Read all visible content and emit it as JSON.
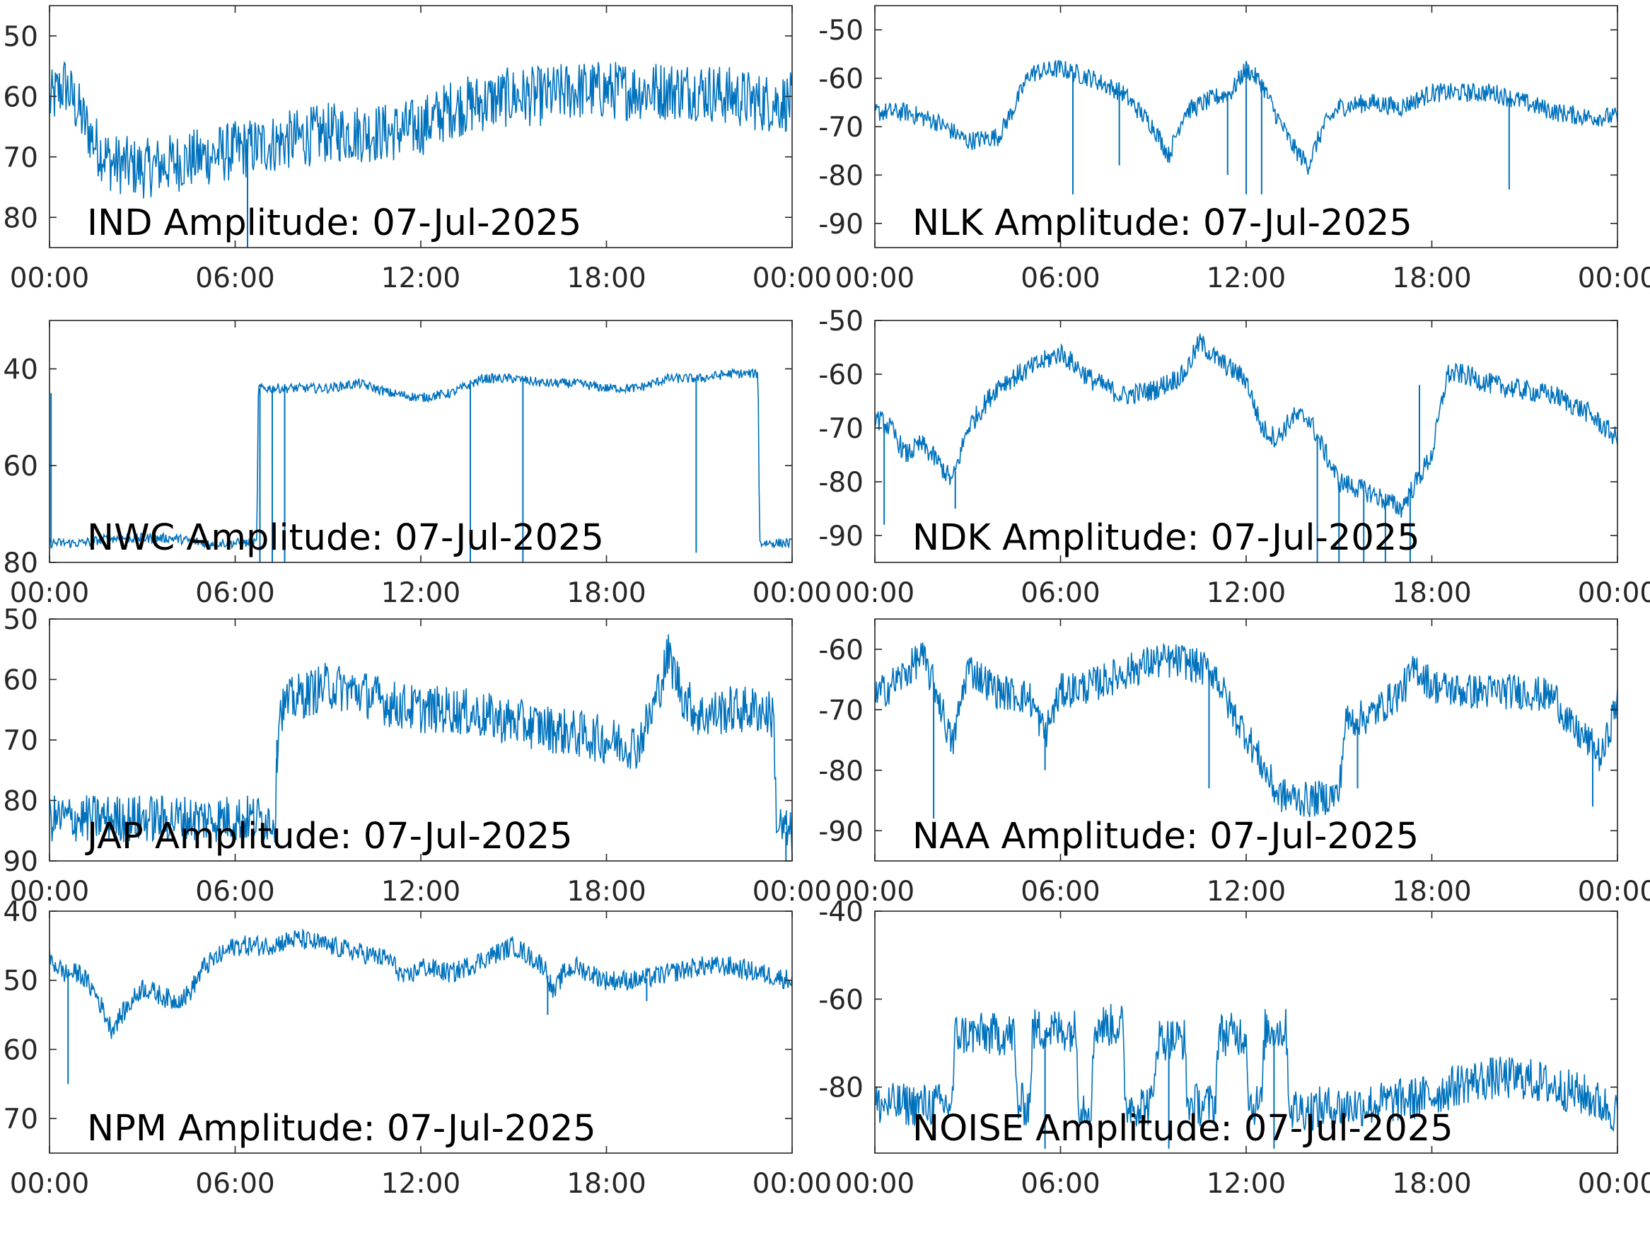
{
  "figure": {
    "line_color": "#0072BD",
    "axes_color": "#262626",
    "background": "#ffffff"
  },
  "chart_data": [
    {
      "type": "line",
      "station": "IND",
      "label": "IND Amplitude: 07-Jul-2025",
      "x_ticks": [
        "00:00",
        "06:00",
        "12:00",
        "18:00",
        "00:00"
      ],
      "ylim": [
        -85,
        -45
      ],
      "y_ticks": [
        -50,
        -60,
        -70,
        -80
      ],
      "y_tick_labels": [
        "50",
        "60",
        "70",
        "80"
      ],
      "noise": 5,
      "x": [
        0,
        0.5,
        1,
        1.5,
        2,
        3,
        4,
        5,
        6,
        7,
        8,
        9,
        10,
        11,
        12,
        13,
        14,
        15,
        16,
        17,
        18,
        19,
        20,
        21,
        22,
        23,
        24
      ],
      "y": [
        -61,
        -58,
        -63,
        -68,
        -71,
        -72,
        -71,
        -70,
        -69,
        -68,
        -67,
        -66,
        -66,
        -66,
        -65,
        -62,
        -61,
        -60,
        -60,
        -59,
        -59,
        -59,
        -59,
        -59,
        -60,
        -61,
        -61
      ],
      "spikes": [
        {
          "x": 6.4,
          "y": -86
        }
      ]
    },
    {
      "type": "line",
      "station": "NLK",
      "label": "NLK Amplitude: 07-Jul-2025",
      "x_ticks": [
        "00:00",
        "06:00",
        "12:00",
        "18:00",
        "00:00"
      ],
      "ylim": [
        -95,
        -45
      ],
      "y_ticks": [
        -50,
        -60,
        -70,
        -80,
        -90
      ],
      "y_tick_labels": [
        "-50",
        "-60",
        "-70",
        "-80",
        "-90"
      ],
      "noise": 2,
      "x": [
        0,
        1,
        2,
        3,
        4,
        4.5,
        5,
        6,
        7,
        8,
        9,
        9.5,
        10,
        11,
        11.5,
        12,
        12.5,
        13,
        13.5,
        14,
        14.5,
        15,
        16,
        17,
        18,
        19,
        20,
        21,
        22,
        23,
        24
      ],
      "y": [
        -67,
        -67,
        -69,
        -73,
        -72,
        -66,
        -59,
        -58,
        -60,
        -63,
        -70,
        -76,
        -67,
        -64,
        -63,
        -58,
        -61,
        -68,
        -74,
        -78,
        -70,
        -66,
        -65,
        -66,
        -63,
        -63,
        -63,
        -65,
        -67,
        -68,
        -68
      ],
      "spikes": [
        {
          "x": 6.4,
          "y": -84
        },
        {
          "x": 7.9,
          "y": -78
        },
        {
          "x": 11.4,
          "y": -80
        },
        {
          "x": 12.0,
          "y": -84
        },
        {
          "x": 12.5,
          "y": -84
        },
        {
          "x": 20.5,
          "y": -83
        }
      ]
    },
    {
      "type": "line",
      "station": "NWC",
      "label": "NWC Amplitude: 07-Jul-2025",
      "x_ticks": [
        "00:00",
        "06:00",
        "12:00",
        "18:00",
        "00:00"
      ],
      "ylim": [
        -80,
        -30
      ],
      "y_ticks": [
        -40,
        -60,
        -80
      ],
      "y_tick_labels": [
        "40",
        "60",
        "80"
      ],
      "noise": 1,
      "x": [
        0,
        0.1,
        1,
        2,
        3,
        4,
        5,
        6,
        6.7,
        6.75,
        7,
        8,
        9,
        10,
        11,
        12,
        13,
        14,
        15,
        16,
        17,
        18,
        19,
        20,
        21,
        22,
        22.9,
        22.95,
        24
      ],
      "y": [
        -76,
        -76,
        -76,
        -75,
        -75,
        -75,
        -76,
        -76,
        -76,
        -44,
        -44,
        -44,
        -44,
        -43,
        -45,
        -46,
        -45,
        -42,
        -42,
        -43,
        -43,
        -44,
        -44,
        -42,
        -42,
        -41,
        -41,
        -76,
        -76
      ],
      "spikes": [
        {
          "x": 0.05,
          "y": -45
        },
        {
          "x": 6.8,
          "y": -80
        },
        {
          "x": 7.2,
          "y": -80
        },
        {
          "x": 7.6,
          "y": -80
        },
        {
          "x": 13.6,
          "y": -80
        },
        {
          "x": 15.3,
          "y": -80
        },
        {
          "x": 20.9,
          "y": -78
        }
      ]
    },
    {
      "type": "line",
      "station": "NDK",
      "label": "NDK Amplitude: 07-Jul-2025",
      "x_ticks": [
        "00:00",
        "06:00",
        "12:00",
        "18:00",
        "00:00"
      ],
      "ylim": [
        -95,
        -50
      ],
      "y_ticks": [
        -50,
        -60,
        -70,
        -80,
        -90
      ],
      "y_tick_labels": [
        "-50",
        "-60",
        "-70",
        "-80",
        "-90"
      ],
      "noise": 2,
      "x": [
        0,
        0.5,
        1,
        1.5,
        2,
        2.5,
        3,
        4,
        5,
        6,
        7,
        8,
        9,
        10,
        10.5,
        11,
        12,
        12.5,
        13,
        13.5,
        14,
        15,
        16,
        17,
        18,
        18.5,
        19,
        20,
        21,
        22,
        23,
        24
      ],
      "y": [
        -68,
        -70,
        -75,
        -73,
        -76,
        -80,
        -70,
        -62,
        -59,
        -56,
        -61,
        -64,
        -63,
        -60,
        -54,
        -57,
        -61,
        -70,
        -72,
        -68,
        -68,
        -80,
        -82,
        -85,
        -75,
        -60,
        -60,
        -62,
        -63,
        -64,
        -67,
        -72
      ],
      "spikes": [
        {
          "x": 0.3,
          "y": -88
        },
        {
          "x": 2.6,
          "y": -85
        },
        {
          "x": 14.3,
          "y": -95
        },
        {
          "x": 15.0,
          "y": -95
        },
        {
          "x": 15.8,
          "y": -95
        },
        {
          "x": 16.5,
          "y": -95
        },
        {
          "x": 17.3,
          "y": -95
        },
        {
          "x": 17.6,
          "y": -62
        }
      ]
    },
    {
      "type": "line",
      "station": "JAP",
      "label": "JAP Amplitude: 07-Jul-2025",
      "x_ticks": [
        "00:00",
        "06:00",
        "12:00",
        "18:00",
        "00:00"
      ],
      "ylim": [
        -90,
        -50
      ],
      "y_ticks": [
        -50,
        -60,
        -70,
        -80,
        -90
      ],
      "y_tick_labels": [
        "50",
        "60",
        "70",
        "80",
        "90"
      ],
      "noise": 4,
      "x": [
        0,
        1,
        2,
        3,
        4,
        5,
        6,
        7.3,
        7.4,
        8,
        9,
        10,
        11,
        12,
        13,
        14,
        15,
        16,
        17,
        18,
        19,
        19.5,
        20,
        20.5,
        21,
        22,
        23,
        23.4,
        23.5,
        24
      ],
      "y": [
        -83,
        -83,
        -83,
        -83,
        -83,
        -83,
        -83,
        -83,
        -65,
        -63,
        -61,
        -62,
        -64,
        -65,
        -65,
        -66,
        -67,
        -68,
        -69,
        -70,
        -71,
        -65,
        -56,
        -63,
        -66,
        -65,
        -65,
        -66,
        -84,
        -86
      ],
      "spikes": [
        {
          "x": 7.35,
          "y": -70
        },
        {
          "x": 23.8,
          "y": -90
        }
      ]
    },
    {
      "type": "line",
      "station": "NAA",
      "label": "NAA Amplitude: 07-Jul-2025",
      "x_ticks": [
        "00:00",
        "06:00",
        "12:00",
        "18:00",
        "00:00"
      ],
      "ylim": [
        -95,
        -55
      ],
      "y_ticks": [
        -60,
        -70,
        -80,
        -90
      ],
      "y_tick_labels": [
        "-60",
        "-70",
        "-80",
        "-90"
      ],
      "noise": 3,
      "x": [
        0,
        1,
        1.5,
        2,
        2.5,
        3,
        4,
        5,
        5.5,
        6,
        7,
        8,
        9,
        10,
        11,
        11.5,
        12,
        12.5,
        13,
        14,
        15,
        15.2,
        16,
        17,
        17.5,
        18,
        19,
        20,
        21,
        22,
        22.5,
        23,
        23.5,
        24
      ],
      "y": [
        -68,
        -64,
        -61,
        -67,
        -76,
        -63,
        -67,
        -68,
        -74,
        -67,
        -66,
        -64,
        -62,
        -62,
        -64,
        -70,
        -74,
        -79,
        -84,
        -85,
        -84,
        -72,
        -71,
        -67,
        -63,
        -66,
        -67,
        -67,
        -67,
        -68,
        -73,
        -75,
        -78,
        -68
      ],
      "spikes": [
        {
          "x": 1.9,
          "y": -88
        },
        {
          "x": 5.5,
          "y": -80
        },
        {
          "x": 10.8,
          "y": -83
        },
        {
          "x": 15.6,
          "y": -83
        },
        {
          "x": 23.2,
          "y": -86
        }
      ]
    },
    {
      "type": "line",
      "station": "NPM",
      "label": "NPM Amplitude: 07-Jul-2025",
      "x_ticks": [
        "00:00",
        "06:00",
        "12:00",
        "18:00",
        "00:00"
      ],
      "ylim": [
        -75,
        -40
      ],
      "y_ticks": [
        -40,
        -50,
        -60,
        -70
      ],
      "y_tick_labels": [
        "40",
        "50",
        "60",
        "70"
      ],
      "noise": 1.5,
      "x": [
        0,
        0.5,
        1,
        1.5,
        2,
        2.5,
        3,
        3.5,
        4,
        4.5,
        5,
        6,
        7,
        8,
        9,
        10,
        11,
        11.5,
        12,
        13,
        14,
        15,
        16,
        16.3,
        16.6,
        17,
        18,
        19,
        20,
        21,
        22,
        23,
        24
      ],
      "y": [
        -47,
        -49,
        -49,
        -52,
        -57,
        -54,
        -51,
        -52,
        -53,
        -52,
        -48,
        -45,
        -45,
        -44,
        -45,
        -46,
        -47,
        -50,
        -48,
        -49,
        -47,
        -45,
        -48,
        -52,
        -49,
        -48,
        -50,
        -50,
        -49,
        -48,
        -48,
        -49,
        -50
      ],
      "spikes": [
        {
          "x": 0.6,
          "y": -65
        },
        {
          "x": 16.1,
          "y": -55
        },
        {
          "x": 19.3,
          "y": -53
        }
      ]
    },
    {
      "type": "line",
      "station": "NOISE",
      "label": "NOISE Amplitude: 07-Jul-2025",
      "x_ticks": [
        "00:00",
        "06:00",
        "12:00",
        "18:00",
        "00:00"
      ],
      "ylim": [
        -95,
        -40
      ],
      "y_ticks": [
        -40,
        -60,
        -80
      ],
      "y_tick_labels": [
        "-40",
        "-60",
        "-80"
      ],
      "noise": 5,
      "x": [
        0,
        1,
        2,
        2.5,
        2.6,
        4.5,
        4.6,
        5.0,
        5.1,
        6.5,
        6.6,
        7.0,
        7.1,
        8.0,
        8.1,
        9.0,
        9.1,
        10.0,
        10.1,
        11.0,
        11.1,
        12.0,
        12.1,
        12.5,
        12.6,
        13.3,
        13.4,
        14,
        16,
        18,
        19,
        20,
        21,
        22,
        23,
        24
      ],
      "y": [
        -84,
        -84,
        -84,
        -84,
        -68,
        -68,
        -84,
        -84,
        -67,
        -67,
        -84,
        -84,
        -66,
        -66,
        -84,
        -84,
        -69,
        -69,
        -84,
        -84,
        -68,
        -68,
        -84,
        -84,
        -67,
        -67,
        -85,
        -85,
        -84,
        -82,
        -79,
        -78,
        -78,
        -80,
        -82,
        -86
      ],
      "spikes": [
        {
          "x": 5.5,
          "y": -94
        },
        {
          "x": 9.5,
          "y": -94
        },
        {
          "x": 12.9,
          "y": -94
        }
      ]
    }
  ]
}
